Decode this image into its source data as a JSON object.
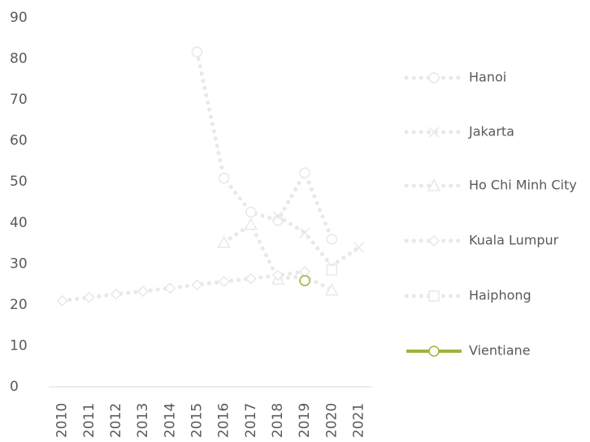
{
  "chart_data": {
    "type": "line",
    "categories": [
      "2010",
      "2011",
      "2012",
      "2013",
      "2014",
      "2015",
      "2016",
      "2017",
      "2018",
      "2019",
      "2020",
      "2021"
    ],
    "ylim": [
      0,
      90
    ],
    "yticks": [
      0,
      10,
      20,
      30,
      40,
      50,
      60,
      70,
      80,
      90
    ],
    "legend": "right",
    "series": [
      {
        "name": "Hanoi",
        "color": "#e8e8e8",
        "marker": "circle",
        "values": [
          null,
          null,
          null,
          null,
          null,
          81.7,
          50.9,
          42.6,
          40.6,
          52.2,
          36,
          null
        ]
      },
      {
        "name": "Jakarta",
        "color": "#e8e8e8",
        "marker": "x",
        "values": [
          null,
          null,
          null,
          null,
          null,
          null,
          null,
          null,
          41.6,
          37.6,
          29.5,
          34
        ]
      },
      {
        "name": "Ho Chi Minh City",
        "color": "#e8e8e8",
        "marker": "triangle",
        "values": [
          null,
          null,
          null,
          null,
          null,
          null,
          35.2,
          39.6,
          26.3,
          27,
          23.6,
          null
        ]
      },
      {
        "name": "Kuala Lumpur",
        "color": "#e8e8e8",
        "marker": "diamond",
        "values": [
          21,
          21.8,
          22.6,
          23.3,
          24.1,
          24.9,
          25.7,
          26.4,
          27.2,
          28.1,
          null,
          null
        ]
      },
      {
        "name": "Haiphong",
        "color": "#e8e8e8",
        "marker": "square",
        "values": [
          null,
          null,
          null,
          null,
          null,
          null,
          null,
          null,
          null,
          null,
          28.5,
          null
        ]
      },
      {
        "name": "Vientiane",
        "color": "#9bb53a",
        "marker": "circle",
        "solid": true,
        "values": [
          null,
          null,
          null,
          null,
          null,
          null,
          null,
          null,
          null,
          25.9,
          null,
          null
        ]
      }
    ]
  }
}
